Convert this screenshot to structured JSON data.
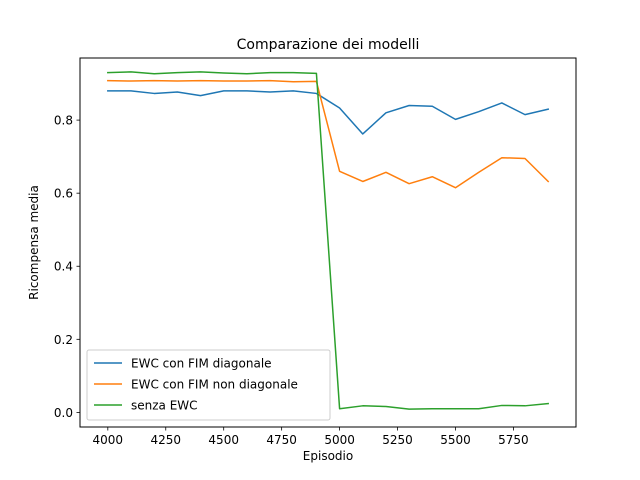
{
  "chart_data": {
    "type": "line",
    "title": "Comparazione dei modelli",
    "xlabel": "Episodio",
    "ylabel": "Ricompensa media",
    "xlim": [
      3880,
      6020
    ],
    "ylim": [
      -0.04,
      0.97
    ],
    "xticks": [
      4000,
      4250,
      4500,
      4750,
      5000,
      5250,
      5500,
      5750
    ],
    "xtick_labels": [
      "4000",
      "4250",
      "4500",
      "4750",
      "5000",
      "5250",
      "5500",
      "5750"
    ],
    "yticks": [
      0.0,
      0.2,
      0.4,
      0.6,
      0.8
    ],
    "ytick_labels": [
      "0.0",
      "0.2",
      "0.4",
      "0.6",
      "0.8"
    ],
    "grid": false,
    "legend_position": "lower-left",
    "x": [
      4000,
      4100,
      4200,
      4300,
      4400,
      4500,
      4600,
      4700,
      4800,
      4900,
      5000,
      5100,
      5200,
      5300,
      5400,
      5500,
      5600,
      5700,
      5800,
      5900
    ],
    "series": [
      {
        "name": "EWC con FIM diagonale",
        "color": "#1f77b4",
        "values": [
          0.88,
          0.88,
          0.873,
          0.877,
          0.867,
          0.88,
          0.88,
          0.877,
          0.88,
          0.873,
          0.833,
          0.762,
          0.82,
          0.84,
          0.838,
          0.802,
          0.823,
          0.847,
          0.815,
          0.83
        ]
      },
      {
        "name": "EWC con FIM non diagonale",
        "color": "#ff7f0e",
        "values": [
          0.908,
          0.907,
          0.908,
          0.907,
          0.908,
          0.907,
          0.907,
          0.908,
          0.905,
          0.906,
          0.66,
          0.632,
          0.657,
          0.626,
          0.645,
          0.615,
          0.657,
          0.697,
          0.695,
          0.632
        ]
      },
      {
        "name": "senza EWC",
        "color": "#2ca02c",
        "values": [
          0.93,
          0.932,
          0.927,
          0.93,
          0.932,
          0.929,
          0.927,
          0.93,
          0.93,
          0.928,
          0.01,
          0.018,
          0.016,
          0.009,
          0.01,
          0.01,
          0.01,
          0.019,
          0.018,
          0.024
        ]
      }
    ]
  }
}
